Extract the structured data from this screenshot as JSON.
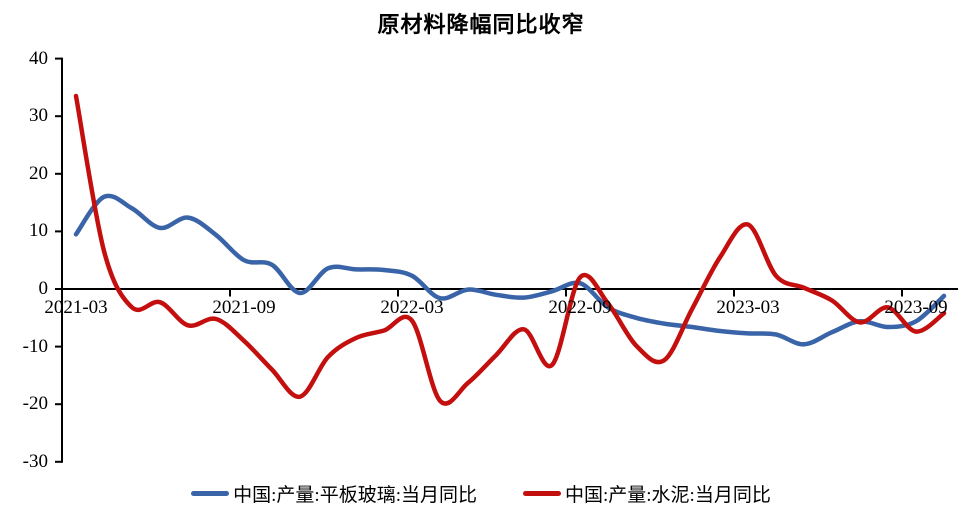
{
  "title": "原材料降幅同比收窄",
  "colors": {
    "glass_blue": "#3A64A8",
    "cement_red": "#C40F0F",
    "axis_black": "#000000"
  },
  "legend": {
    "items": [
      {
        "label": "中国:产量:平板玻璃:当月同比"
      },
      {
        "label": "中国:产量:水泥:当月同比"
      }
    ]
  },
  "chart_data": {
    "type": "line",
    "smoothed": true,
    "title": "原材料降幅同比收窄",
    "grid": false,
    "legend_position": "bottom",
    "ylim": [
      -30,
      40
    ],
    "y_ticks": [
      40,
      30,
      20,
      10,
      0,
      -10,
      -20,
      -30
    ],
    "x_tick_labels": [
      "2021-03",
      "2021-09",
      "2022-03",
      "2022-09",
      "2023-03",
      "2023-09"
    ],
    "x": [
      "2021-03",
      "2021-04",
      "2021-05",
      "2021-06",
      "2021-07",
      "2021-08",
      "2021-09",
      "2021-10",
      "2021-11",
      "2021-12",
      "2022-01",
      "2022-02",
      "2022-03",
      "2022-04",
      "2022-05",
      "2022-06",
      "2022-07",
      "2022-08",
      "2022-09",
      "2022-10",
      "2022-11",
      "2022-12",
      "2023-01",
      "2023-02",
      "2023-03",
      "2023-04",
      "2023-05",
      "2023-06",
      "2023-07",
      "2023-08",
      "2023-09",
      "2023-10"
    ],
    "series": [
      {
        "name": "中国:产量:平板玻璃:当月同比",
        "color": "#3A64A8",
        "values": [
          9.5,
          16.0,
          14.0,
          10.6,
          12.4,
          9.4,
          5.0,
          4.2,
          -0.7,
          3.6,
          3.4,
          3.3,
          2.3,
          -1.6,
          -0.1,
          -1.0,
          -1.5,
          -0.4,
          1.0,
          -3.2,
          -5.0,
          -6.0,
          -6.6,
          -7.3,
          -7.7,
          -7.9,
          -9.6,
          -7.5,
          -5.6,
          -6.6,
          -5.6,
          -1.2
        ]
      },
      {
        "name": "中国:产量:水泥:当月同比",
        "color": "#C40F0F",
        "values": [
          33.5,
          6.6,
          -3.2,
          -2.3,
          -6.3,
          -5.2,
          -9.0,
          -14.0,
          -18.7,
          -11.8,
          -8.5,
          -7.2,
          -5.5,
          -19.4,
          -16.3,
          -11.5,
          -7.0,
          -13.2,
          2.0,
          -2.5,
          -9.8,
          -12.4,
          -3.5,
          5.5,
          11.2,
          2.3,
          0.2,
          -2.0,
          -5.8,
          -3.2,
          -7.4,
          -4.2
        ]
      }
    ]
  }
}
